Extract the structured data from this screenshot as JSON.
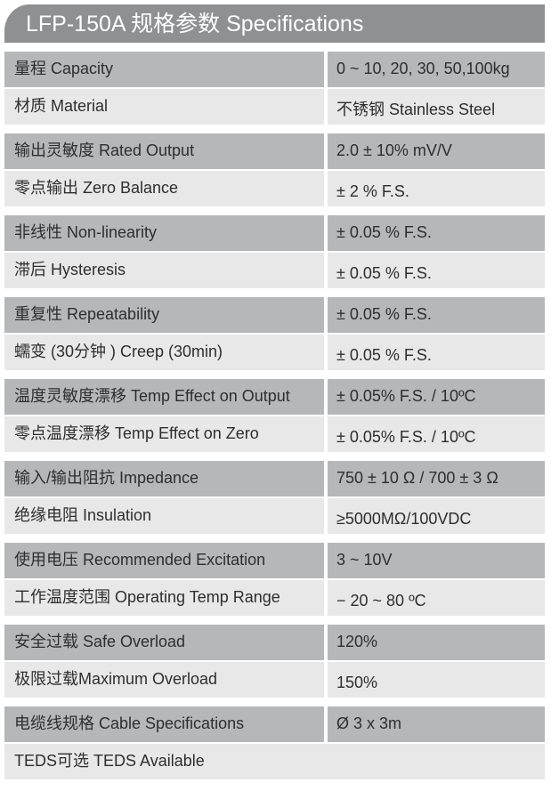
{
  "header": {
    "title": "LFP-150A 规格参数 Specifications"
  },
  "rows": [
    {
      "label": "量程 Capacity",
      "value": "0 ~ 10, 20, 30, 50,100kg"
    },
    {
      "label": "材质 Material",
      "value": "不锈钢 Stainless Steel"
    },
    {
      "label": "输出灵敏度 Rated Output",
      "value": "2.0 ± 10% mV/V"
    },
    {
      "label": "零点输出  Zero Balance",
      "value": "± 2 % F.S."
    },
    {
      "label": "非线性 Non-linearity",
      "value": "± 0.05 % F.S."
    },
    {
      "label": "滞后 Hysteresis",
      "value": "± 0.05 % F.S."
    },
    {
      "label": "重复性 Repeatability",
      "value": "± 0.05 % F.S."
    },
    {
      "label": "蠕变 (30分钟 ) Creep (30min)",
      "value": "± 0.05 % F.S."
    },
    {
      "label": "温度灵敏度漂移 Temp Effect on Output",
      "value": "± 0.05% F.S. / 10ºC"
    },
    {
      "label": "零点温度漂移 Temp Effect on Zero",
      "value": "± 0.05% F.S. / 10ºC"
    },
    {
      "label": "输入/输出阻抗 Impedance",
      "value": "750 ± 10 Ω  /  700 ± 3 Ω"
    },
    {
      "label": "绝缘电阻  Insulation",
      "value": "≥5000MΩ/100VDC"
    },
    {
      "label": "使用电压 Recommended Excitation",
      "value": "3 ~ 10V"
    },
    {
      "label": "工作温度范围 Operating Temp  Range",
      "value": "− 20 ~ 80 ºC"
    },
    {
      "label": "安全过载 Safe Overload",
      "value": "120%"
    },
    {
      "label": "极限过载Maximum Overload",
      "value": "150%"
    },
    {
      "label": "电缆线规格 Cable Specifications",
      "value": "Ø 3 x 3m"
    },
    {
      "label": "TEDS可选 TEDS Available"
    }
  ]
}
